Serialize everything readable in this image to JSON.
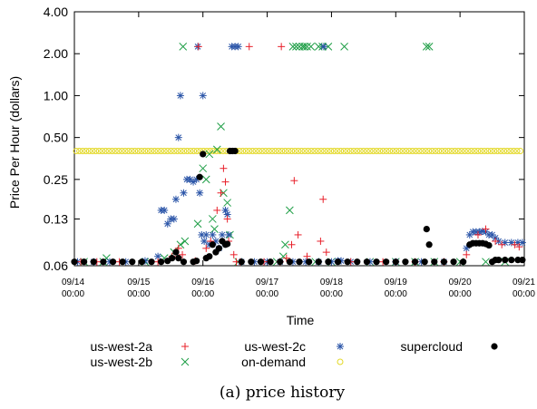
{
  "chart_data": {
    "type": "scatter",
    "xlabel": "Time",
    "ylabel": "Price Per Hour (dollars)",
    "caption": "(a) price history",
    "y_scale": "log",
    "ylim": [
      0.06,
      4.0
    ],
    "xlim": [
      "09/14 00:00",
      "09/21 00:00"
    ],
    "y_ticks": [
      "0.06",
      "0.13",
      "0.25",
      "0.50",
      "1.00",
      "2.00",
      "4.00"
    ],
    "x_ticks": [
      {
        "l1": "09/14",
        "l2": "00:00"
      },
      {
        "l1": "09/15",
        "l2": "00:00"
      },
      {
        "l1": "09/16",
        "l2": "00:00"
      },
      {
        "l1": "09/17",
        "l2": "00:00"
      },
      {
        "l1": "09/18",
        "l2": "00:00"
      },
      {
        "l1": "09/19",
        "l2": "00:00"
      },
      {
        "l1": "09/20",
        "l2": "00:00"
      },
      {
        "l1": "09/21",
        "l2": "00:00"
      }
    ],
    "legend_position": "bottom",
    "series": [
      {
        "name": "us-west-2a",
        "marker": "plus",
        "color": "#e8202a",
        "points": [
          [
            0.1,
            0.064
          ],
          [
            0.35,
            0.064
          ],
          [
            0.7,
            0.064
          ],
          [
            1.3,
            0.064
          ],
          [
            1.52,
            0.07
          ],
          [
            1.62,
            0.08
          ],
          [
            1.68,
            0.072
          ],
          [
            1.88,
            0.065
          ],
          [
            1.93,
            2.25
          ],
          [
            2.05,
            0.08
          ],
          [
            2.12,
            0.09
          ],
          [
            2.22,
            0.15
          ],
          [
            2.28,
            0.2
          ],
          [
            2.32,
            0.3
          ],
          [
            2.35,
            0.24
          ],
          [
            2.38,
            0.13
          ],
          [
            2.4,
            0.09
          ],
          [
            2.48,
            0.072
          ],
          [
            2.52,
            0.064
          ],
          [
            2.58,
            0.064
          ],
          [
            2.72,
            2.25
          ],
          [
            2.95,
            0.064
          ],
          [
            3.2,
            0.064
          ],
          [
            3.22,
            2.25
          ],
          [
            3.3,
            0.068
          ],
          [
            3.38,
            0.085
          ],
          [
            3.42,
            0.245
          ],
          [
            3.48,
            0.1
          ],
          [
            3.62,
            0.07
          ],
          [
            3.83,
            0.09
          ],
          [
            3.87,
            0.18
          ],
          [
            3.92,
            0.075
          ],
          [
            4.3,
            0.064
          ],
          [
            4.8,
            0.064
          ],
          [
            5.3,
            0.064
          ],
          [
            5.75,
            0.064
          ],
          [
            6.1,
            0.072
          ],
          [
            6.28,
            0.1
          ],
          [
            6.4,
            0.11
          ],
          [
            6.55,
            0.09
          ],
          [
            6.65,
            0.085
          ],
          [
            6.85,
            0.085
          ],
          [
            6.92,
            0.082
          ]
        ]
      },
      {
        "name": "us-west-2b",
        "marker": "x",
        "color": "#1e9e46",
        "points": [
          [
            0.15,
            0.064
          ],
          [
            0.45,
            0.064
          ],
          [
            0.5,
            0.068
          ],
          [
            1.1,
            0.064
          ],
          [
            1.4,
            0.068
          ],
          [
            1.55,
            0.075
          ],
          [
            1.65,
            0.085
          ],
          [
            1.69,
            2.25
          ],
          [
            1.72,
            0.09
          ],
          [
            1.92,
            0.12
          ],
          [
            2.0,
            0.3
          ],
          [
            2.05,
            0.25
          ],
          [
            2.1,
            0.38
          ],
          [
            2.15,
            0.13
          ],
          [
            2.18,
            0.11
          ],
          [
            2.22,
            0.41
          ],
          [
            2.28,
            0.6
          ],
          [
            2.32,
            0.2
          ],
          [
            2.38,
            0.17
          ],
          [
            2.42,
            0.1
          ],
          [
            2.55,
            0.064
          ],
          [
            3.15,
            0.064
          ],
          [
            3.25,
            0.07
          ],
          [
            3.28,
            0.085
          ],
          [
            3.35,
            0.15
          ],
          [
            3.4,
            2.25
          ],
          [
            3.45,
            2.25
          ],
          [
            3.5,
            2.25
          ],
          [
            3.55,
            2.25
          ],
          [
            3.58,
            2.25
          ],
          [
            3.62,
            2.25
          ],
          [
            3.68,
            2.25
          ],
          [
            3.75,
            0.064
          ],
          [
            3.8,
            2.25
          ],
          [
            3.86,
            2.25
          ],
          [
            3.95,
            2.25
          ],
          [
            4.0,
            0.064
          ],
          [
            4.2,
            2.25
          ],
          [
            4.6,
            0.064
          ],
          [
            5.0,
            0.064
          ],
          [
            5.3,
            0.064
          ],
          [
            5.48,
            2.25
          ],
          [
            5.52,
            2.25
          ],
          [
            5.6,
            0.064
          ],
          [
            6.0,
            0.064
          ],
          [
            6.4,
            0.064
          ],
          [
            6.7,
            0.064
          ]
        ]
      },
      {
        "name": "us-west-2c",
        "marker": "star",
        "color": "#2b55a8",
        "points": [
          [
            0.05,
            0.064
          ],
          [
            0.3,
            0.064
          ],
          [
            0.55,
            0.064
          ],
          [
            0.8,
            0.064
          ],
          [
            1.1,
            0.065
          ],
          [
            1.3,
            0.07
          ],
          [
            1.35,
            0.15
          ],
          [
            1.4,
            0.15
          ],
          [
            1.45,
            0.12
          ],
          [
            1.5,
            0.13
          ],
          [
            1.55,
            0.13
          ],
          [
            1.58,
            0.18
          ],
          [
            1.62,
            0.5
          ],
          [
            1.65,
            1.0
          ],
          [
            1.7,
            0.2
          ],
          [
            1.75,
            0.25
          ],
          [
            1.8,
            0.25
          ],
          [
            1.85,
            0.24
          ],
          [
            1.9,
            0.25
          ],
          [
            1.92,
            2.25
          ],
          [
            1.95,
            0.2
          ],
          [
            1.98,
            0.1
          ],
          [
            2.0,
            1.0
          ],
          [
            2.02,
            0.09
          ],
          [
            2.05,
            0.1
          ],
          [
            2.1,
            0.085
          ],
          [
            2.15,
            0.1
          ],
          [
            2.2,
            0.09
          ],
          [
            2.25,
            0.08
          ],
          [
            2.3,
            0.1
          ],
          [
            2.35,
            0.15
          ],
          [
            2.38,
            0.14
          ],
          [
            2.4,
            0.1
          ],
          [
            2.45,
            2.25
          ],
          [
            2.5,
            2.25
          ],
          [
            2.55,
            2.25
          ],
          [
            2.6,
            0.064
          ],
          [
            2.8,
            0.064
          ],
          [
            3.0,
            0.064
          ],
          [
            3.2,
            0.064
          ],
          [
            3.4,
            0.064
          ],
          [
            3.6,
            0.064
          ],
          [
            3.8,
            0.064
          ],
          [
            3.88,
            2.25
          ],
          [
            4.0,
            0.064
          ],
          [
            4.1,
            0.065
          ],
          [
            4.15,
            0.065
          ],
          [
            4.3,
            0.064
          ],
          [
            4.6,
            0.064
          ],
          [
            5.0,
            0.064
          ],
          [
            5.4,
            0.064
          ],
          [
            5.75,
            0.064
          ],
          [
            6.1,
            0.08
          ],
          [
            6.15,
            0.1
          ],
          [
            6.2,
            0.105
          ],
          [
            6.25,
            0.105
          ],
          [
            6.3,
            0.105
          ],
          [
            6.35,
            0.106
          ],
          [
            6.4,
            0.105
          ],
          [
            6.45,
            0.1
          ],
          [
            6.5,
            0.1
          ],
          [
            6.55,
            0.095
          ],
          [
            6.6,
            0.09
          ],
          [
            6.7,
            0.088
          ],
          [
            6.8,
            0.088
          ],
          [
            6.9,
            0.088
          ],
          [
            6.97,
            0.088
          ]
        ]
      },
      {
        "name": "on-demand",
        "marker": "circle-open",
        "color": "#e3d827",
        "constant": 0.4
      },
      {
        "name": "supercloud",
        "marker": "dot",
        "color": "#000000",
        "points": [
          [
            0.0,
            0.064
          ],
          [
            0.15,
            0.064
          ],
          [
            0.3,
            0.064
          ],
          [
            0.45,
            0.064
          ],
          [
            0.6,
            0.064
          ],
          [
            0.75,
            0.064
          ],
          [
            0.9,
            0.064
          ],
          [
            1.05,
            0.064
          ],
          [
            1.2,
            0.064
          ],
          [
            1.35,
            0.064
          ],
          [
            1.45,
            0.065
          ],
          [
            1.52,
            0.068
          ],
          [
            1.58,
            0.075
          ],
          [
            1.62,
            0.068
          ],
          [
            1.7,
            0.064
          ],
          [
            1.85,
            0.064
          ],
          [
            1.9,
            0.065
          ],
          [
            1.95,
            0.26
          ],
          [
            2.0,
            0.38
          ],
          [
            2.05,
            0.068
          ],
          [
            2.1,
            0.07
          ],
          [
            2.15,
            0.085
          ],
          [
            2.2,
            0.075
          ],
          [
            2.25,
            0.08
          ],
          [
            2.3,
            0.09
          ],
          [
            2.35,
            0.085
          ],
          [
            2.38,
            0.086
          ],
          [
            2.42,
            0.4
          ],
          [
            2.46,
            0.4
          ],
          [
            2.5,
            0.4
          ],
          [
            2.6,
            0.064
          ],
          [
            2.75,
            0.064
          ],
          [
            2.9,
            0.064
          ],
          [
            3.05,
            0.064
          ],
          [
            3.2,
            0.064
          ],
          [
            3.35,
            0.064
          ],
          [
            3.5,
            0.064
          ],
          [
            3.65,
            0.064
          ],
          [
            3.8,
            0.064
          ],
          [
            3.95,
            0.064
          ],
          [
            4.1,
            0.064
          ],
          [
            4.25,
            0.064
          ],
          [
            4.4,
            0.064
          ],
          [
            4.55,
            0.064
          ],
          [
            4.7,
            0.064
          ],
          [
            4.85,
            0.064
          ],
          [
            5.0,
            0.064
          ],
          [
            5.15,
            0.064
          ],
          [
            5.3,
            0.064
          ],
          [
            5.45,
            0.064
          ],
          [
            5.48,
            0.11
          ],
          [
            5.52,
            0.085
          ],
          [
            5.6,
            0.064
          ],
          [
            5.75,
            0.064
          ],
          [
            5.9,
            0.064
          ],
          [
            6.05,
            0.064
          ],
          [
            6.15,
            0.085
          ],
          [
            6.2,
            0.087
          ],
          [
            6.25,
            0.087
          ],
          [
            6.3,
            0.087
          ],
          [
            6.35,
            0.087
          ],
          [
            6.4,
            0.086
          ],
          [
            6.45,
            0.084
          ],
          [
            6.5,
            0.064
          ],
          [
            6.55,
            0.066
          ],
          [
            6.6,
            0.066
          ],
          [
            6.7,
            0.066
          ],
          [
            6.8,
            0.066
          ],
          [
            6.9,
            0.066
          ],
          [
            6.97,
            0.066
          ]
        ]
      }
    ]
  }
}
